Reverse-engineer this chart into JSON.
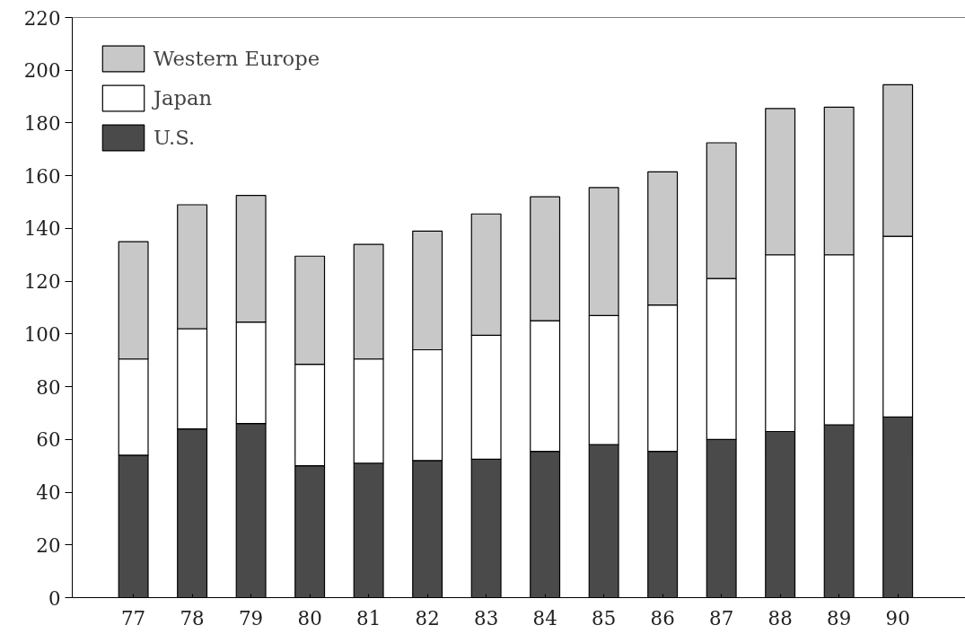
{
  "chart_data": {
    "type": "bar",
    "stacked": true,
    "categories": [
      "77",
      "78",
      "79",
      "80",
      "81",
      "82",
      "83",
      "84",
      "85",
      "86",
      "87",
      "88",
      "89",
      "90"
    ],
    "series": [
      {
        "name": "U.S.",
        "color": "#4a4a4a",
        "values": [
          54,
          64,
          66,
          50,
          51,
          52,
          52.5,
          55.5,
          58,
          55.5,
          60,
          63,
          65.5,
          68.5
        ]
      },
      {
        "name": "Japan",
        "color": "#ffffff",
        "values": [
          36.5,
          38,
          38.5,
          38.5,
          39.5,
          42,
          47,
          49.5,
          49,
          55.5,
          61,
          67,
          64.5,
          68.5
        ]
      },
      {
        "name": "Western Europe",
        "color": "#c8c8c8",
        "values": [
          44.5,
          47,
          48,
          41,
          43.5,
          45,
          46,
          47,
          48.5,
          50.5,
          51.5,
          55.5,
          56,
          57.5
        ]
      }
    ],
    "ylim": [
      0,
      220
    ],
    "yticks": [
      0,
      20,
      40,
      60,
      80,
      100,
      120,
      140,
      160,
      180,
      200,
      220
    ],
    "legend": "top left",
    "grid": false
  }
}
